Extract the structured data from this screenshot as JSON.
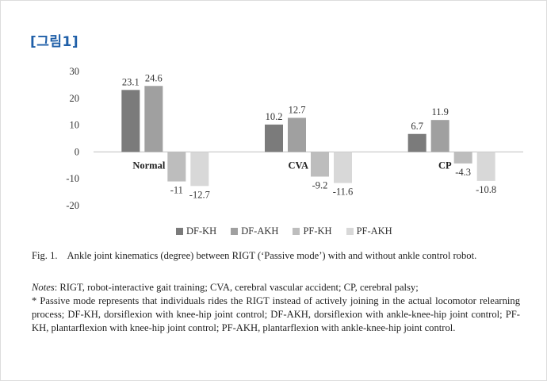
{
  "header": {
    "figure_label": "[그림1]"
  },
  "colors": {
    "DF-KH": "#7b7b7b",
    "DF-AKH": "#a0a0a0",
    "PF-KH": "#bdbdbd",
    "PF-AKH": "#d8d8d8"
  },
  "chart_data": {
    "type": "bar",
    "categories": [
      "Normal",
      "CVA",
      "CP"
    ],
    "series": [
      {
        "name": "DF-KH",
        "values": [
          23.1,
          10.2,
          6.7
        ],
        "labels": [
          "23.1",
          "10.2",
          "6.7"
        ]
      },
      {
        "name": "DF-AKH",
        "values": [
          24.6,
          12.7,
          11.9
        ],
        "labels": [
          "24.6",
          "12.7",
          "11.9"
        ]
      },
      {
        "name": "PF-KH",
        "values": [
          -11,
          -9.2,
          -4.3
        ],
        "labels": [
          "-11",
          "-9.2",
          "-4.3"
        ]
      },
      {
        "name": "PF-AKH",
        "values": [
          -12.7,
          -11.6,
          -10.8
        ],
        "labels": [
          "-12.7",
          "-11.6",
          "-10.8"
        ]
      }
    ],
    "yticks": [
      30,
      20,
      10,
      0,
      -10,
      -20
    ],
    "ylim": [
      -20,
      30
    ],
    "grid": false,
    "legend_position": "bottom",
    "title": "",
    "xlabel": "",
    "ylabel": ""
  },
  "caption": {
    "fig_num": "Fig. 1.",
    "text": "Ankle joint kinematics (degree) between RIGT (‘Passive mode’) with and without ankle control robot."
  },
  "notes": {
    "label": "Notes",
    "line1": ": RIGT, robot-interactive gait training; CVA, cerebral vascular accident; CP, cerebral palsy;",
    "line2": "* Passive mode represents that individuals rides the RIGT instead of actively joining in the actual locomotor relearning process; DF-KH, dorsiflexion with knee-hip joint control; DF-AKH, dorsiflexion with ankle-knee-hip joint control; PF-KH, plantarflexion with knee-hip joint control; PF-AKH, plantarflexion with ankle-knee-hip joint control."
  }
}
